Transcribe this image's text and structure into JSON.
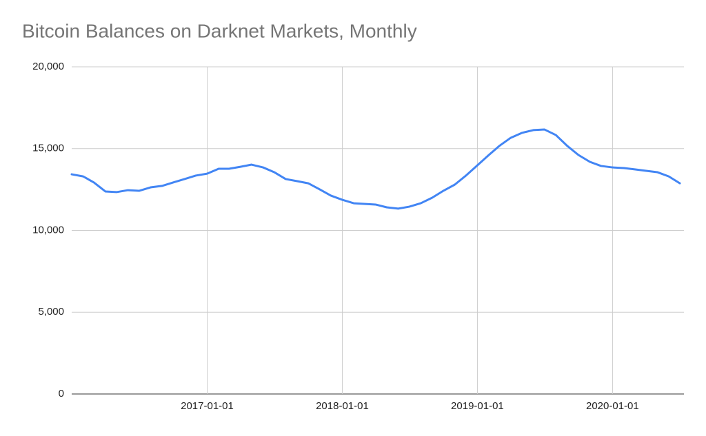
{
  "chart_data": {
    "type": "line",
    "title": "Bitcoin Balances on Darknet Markets, Monthly",
    "x": [
      "2016-01-01",
      "2016-02-01",
      "2016-03-01",
      "2016-04-01",
      "2016-05-01",
      "2016-06-01",
      "2016-07-01",
      "2016-08-01",
      "2016-09-01",
      "2016-10-01",
      "2016-11-01",
      "2016-12-01",
      "2017-01-01",
      "2017-02-01",
      "2017-03-01",
      "2017-04-01",
      "2017-05-01",
      "2017-06-01",
      "2017-07-01",
      "2017-08-01",
      "2017-09-01",
      "2017-10-01",
      "2017-11-01",
      "2017-12-01",
      "2018-01-01",
      "2018-02-01",
      "2018-03-01",
      "2018-04-01",
      "2018-05-01",
      "2018-06-01",
      "2018-07-01",
      "2018-08-01",
      "2018-09-01",
      "2018-10-01",
      "2018-11-01",
      "2018-12-01",
      "2019-01-01",
      "2019-02-01",
      "2019-03-01",
      "2019-04-01",
      "2019-05-01",
      "2019-06-01",
      "2019-07-01",
      "2019-08-01",
      "2019-09-01",
      "2019-10-01",
      "2019-11-01",
      "2019-12-01",
      "2020-01-01",
      "2020-02-01",
      "2020-03-01",
      "2020-04-01",
      "2020-05-01",
      "2020-06-01",
      "2020-07-01"
    ],
    "series": [
      {
        "name": "Bitcoin Balances",
        "color": "#4285f4",
        "values": [
          13430,
          13300,
          12930,
          12380,
          12340,
          12460,
          12420,
          12630,
          12720,
          12930,
          13140,
          13350,
          13470,
          13770,
          13770,
          13890,
          14020,
          13850,
          13560,
          13140,
          13010,
          12880,
          12510,
          12130,
          11870,
          11660,
          11620,
          11580,
          11410,
          11330,
          11450,
          11660,
          12000,
          12420,
          12800,
          13350,
          13980,
          14610,
          15160,
          15660,
          15960,
          16130,
          16170,
          15830,
          15160,
          14610,
          14190,
          13940,
          13850,
          13810,
          13730,
          13640,
          13560,
          13300,
          12880
        ]
      }
    ],
    "xlim": [
      "2016-01-01",
      "2020-07-12"
    ],
    "xticks": [
      "2017-01-01",
      "2018-01-01",
      "2019-01-01",
      "2020-01-01"
    ],
    "ylim": [
      0,
      20000
    ],
    "yticks": [
      0,
      {
        "value": 5000,
        "label": "5,000"
      },
      {
        "value": 10000,
        "label": "10,000"
      },
      {
        "value": 15000,
        "label": "15,000"
      },
      {
        "value": 20000,
        "label": "20,000"
      }
    ],
    "grid": true
  }
}
